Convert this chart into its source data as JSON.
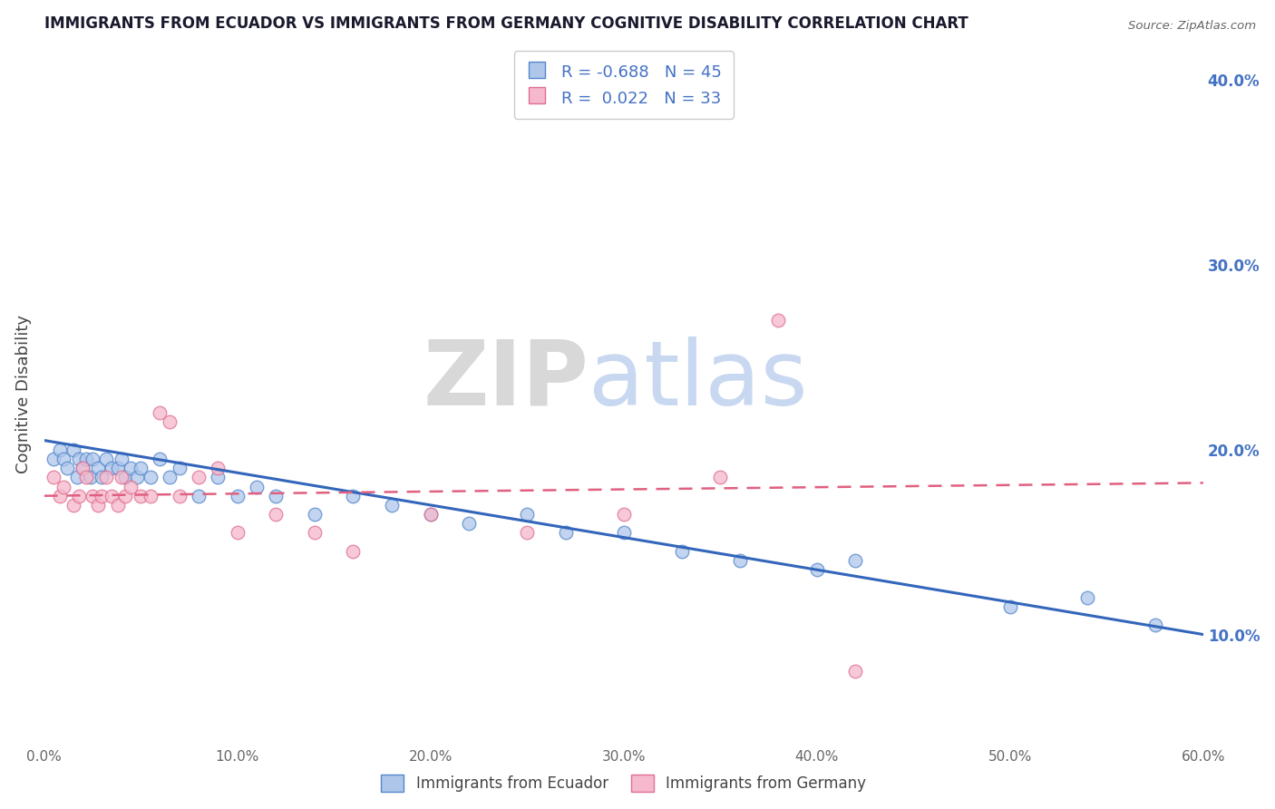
{
  "title": "IMMIGRANTS FROM ECUADOR VS IMMIGRANTS FROM GERMANY COGNITIVE DISABILITY CORRELATION CHART",
  "source": "Source: ZipAtlas.com",
  "ylabel": "Cognitive Disability",
  "xlim": [
    0.0,
    0.6
  ],
  "ylim": [
    0.04,
    0.42
  ],
  "xticks": [
    0.0,
    0.1,
    0.2,
    0.3,
    0.4,
    0.5,
    0.6
  ],
  "xtick_labels": [
    "0.0%",
    "10.0%",
    "20.0%",
    "30.0%",
    "40.0%",
    "50.0%",
    "60.0%"
  ],
  "yticks_right": [
    0.1,
    0.2,
    0.3,
    0.4
  ],
  "ytick_right_labels": [
    "10.0%",
    "20.0%",
    "30.0%",
    "40.0%"
  ],
  "ecuador_color": "#aec6ea",
  "germany_color": "#f5b8cc",
  "ecuador_edge_color": "#5588cc",
  "germany_edge_color": "#e07090",
  "ecuador_line_color": "#3366bb",
  "germany_line_color": "#e06080",
  "ecuador_r": -0.688,
  "ecuador_n": 45,
  "germany_r": 0.022,
  "germany_n": 33,
  "legend_label_ecuador": "Immigrants from Ecuador",
  "legend_label_germany": "Immigrants from Germany",
  "watermark_zip": "ZIP",
  "watermark_atlas": "atlas",
  "ecuador_points_x": [
    0.005,
    0.008,
    0.01,
    0.012,
    0.015,
    0.017,
    0.018,
    0.02,
    0.022,
    0.024,
    0.025,
    0.028,
    0.03,
    0.032,
    0.035,
    0.038,
    0.04,
    0.042,
    0.045,
    0.048,
    0.05,
    0.055,
    0.06,
    0.065,
    0.07,
    0.08,
    0.09,
    0.1,
    0.11,
    0.12,
    0.14,
    0.16,
    0.18,
    0.2,
    0.22,
    0.25,
    0.27,
    0.3,
    0.33,
    0.36,
    0.4,
    0.42,
    0.5,
    0.54,
    0.575
  ],
  "ecuador_points_y": [
    0.195,
    0.2,
    0.195,
    0.19,
    0.2,
    0.185,
    0.195,
    0.19,
    0.195,
    0.185,
    0.195,
    0.19,
    0.185,
    0.195,
    0.19,
    0.19,
    0.195,
    0.185,
    0.19,
    0.185,
    0.19,
    0.185,
    0.195,
    0.185,
    0.19,
    0.175,
    0.185,
    0.175,
    0.18,
    0.175,
    0.165,
    0.175,
    0.17,
    0.165,
    0.16,
    0.165,
    0.155,
    0.155,
    0.145,
    0.14,
    0.135,
    0.14,
    0.115,
    0.12,
    0.105
  ],
  "germany_points_x": [
    0.005,
    0.008,
    0.01,
    0.015,
    0.018,
    0.02,
    0.022,
    0.025,
    0.028,
    0.03,
    0.032,
    0.035,
    0.038,
    0.04,
    0.042,
    0.045,
    0.05,
    0.055,
    0.06,
    0.065,
    0.07,
    0.08,
    0.09,
    0.1,
    0.12,
    0.14,
    0.16,
    0.2,
    0.25,
    0.3,
    0.35,
    0.38,
    0.42
  ],
  "germany_points_y": [
    0.185,
    0.175,
    0.18,
    0.17,
    0.175,
    0.19,
    0.185,
    0.175,
    0.17,
    0.175,
    0.185,
    0.175,
    0.17,
    0.185,
    0.175,
    0.18,
    0.175,
    0.175,
    0.22,
    0.215,
    0.175,
    0.185,
    0.19,
    0.155,
    0.165,
    0.155,
    0.145,
    0.165,
    0.155,
    0.165,
    0.185,
    0.27,
    0.08
  ],
  "background_color": "#ffffff",
  "grid_color": "#cccccc",
  "title_color": "#1a1a2e",
  "right_label_color": "#4472c4",
  "legend_r_color": "#4472c4"
}
